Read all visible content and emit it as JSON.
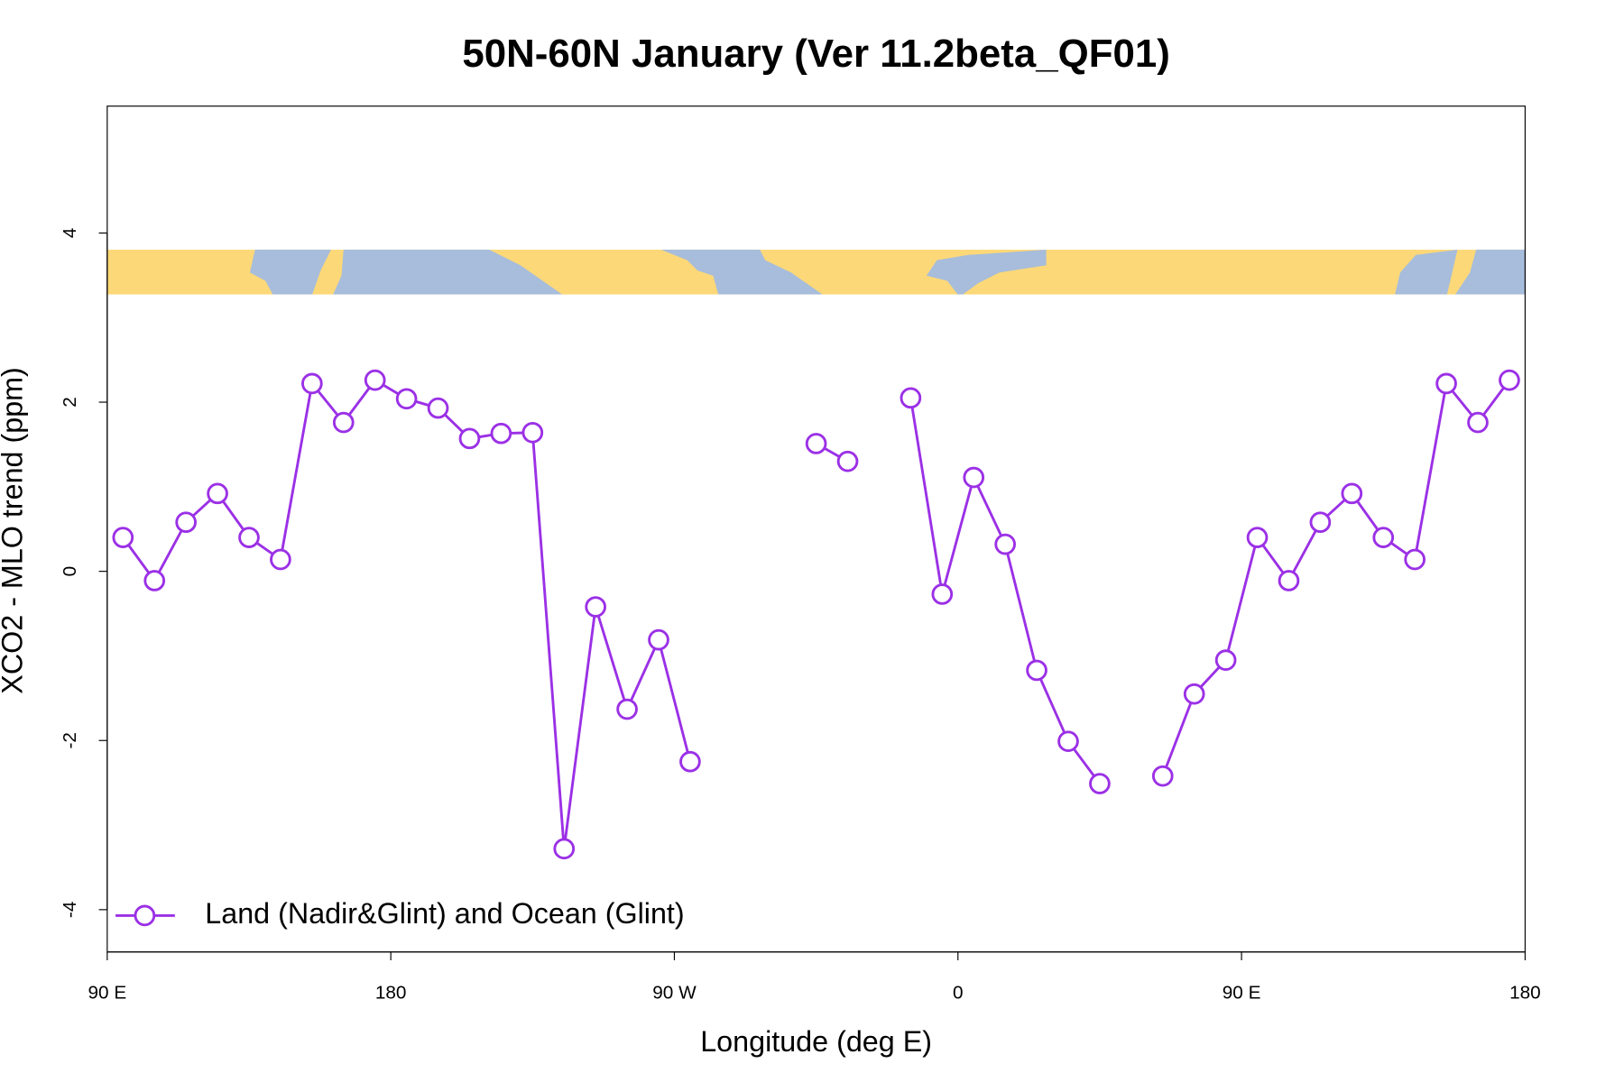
{
  "chart_data": {
    "type": "line",
    "title": "50N-60N January (Ver 11.2beta_QF01)",
    "x_label": "Longitude (deg E)",
    "y_label": "XCO2 - MLO trend (ppm)",
    "x": [
      95,
      105,
      115,
      125,
      135,
      145,
      155,
      165,
      175,
      185,
      195,
      205,
      215,
      225,
      235,
      245,
      255,
      265,
      275,
      285,
      295,
      305,
      315,
      325,
      335,
      345,
      355,
      365,
      375,
      385,
      395,
      405,
      415,
      425,
      435,
      445,
      455,
      465,
      475,
      485,
      495,
      505,
      515,
      525,
      535
    ],
    "series": [
      {
        "name": "Land (Nadir&Glint) and Ocean (Glint)",
        "color": "#9b30e6",
        "values": [
          0.4,
          -0.11,
          0.58,
          0.92,
          0.4,
          0.14,
          2.22,
          1.76,
          2.26,
          2.04,
          1.93,
          1.57,
          1.63,
          1.64,
          -3.28,
          -0.42,
          -1.63,
          -0.81,
          -2.25,
          null,
          null,
          null,
          1.51,
          1.3,
          null,
          2.05,
          -0.27,
          1.11,
          0.32,
          -1.17,
          -2.01,
          -2.51,
          null,
          -2.42,
          -1.45,
          -1.05,
          0.4,
          -0.11,
          0.58,
          0.92,
          0.4,
          0.14,
          2.22,
          1.76,
          2.26
        ]
      }
    ],
    "xlim": [
      90,
      540
    ],
    "ylim": [
      -4.5,
      5.5
    ],
    "xticks": [
      {
        "value": 90,
        "label": "90 E"
      },
      180,
      {
        "value": 270,
        "label": "90 W"
      },
      {
        "value": 360,
        "label": "0"
      },
      {
        "value": 450,
        "label": "90 E"
      },
      {
        "value": 540,
        "label": "180"
      }
    ],
    "yticks": [
      -4,
      -2,
      0,
      2,
      4
    ],
    "legend": "bottomleft"
  }
}
